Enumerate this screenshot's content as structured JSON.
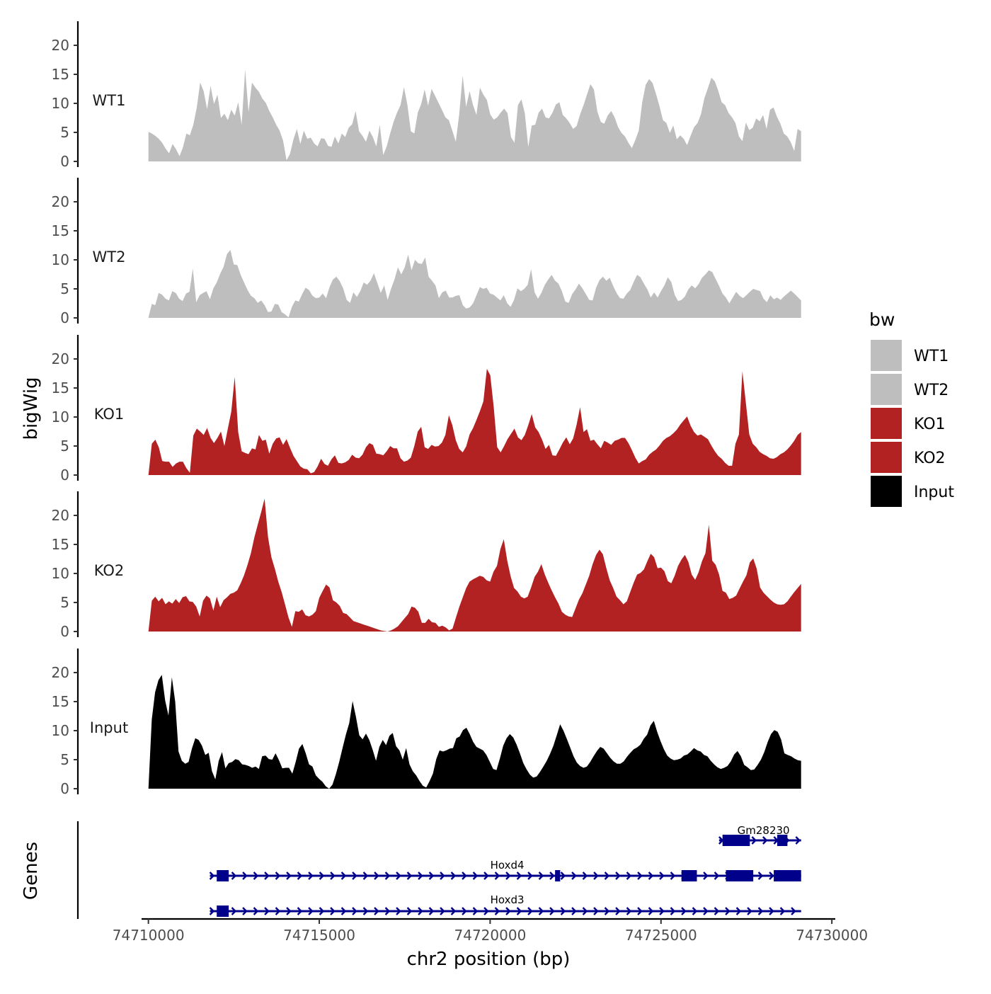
{
  "chart_data": {
    "type": "area",
    "title": "",
    "ylabel": "bigWig",
    "xlabel": "chr2 position (bp)",
    "genes_panel_label": "Genes",
    "xlim": [
      74709800,
      74730100
    ],
    "data_range": [
      74710000,
      74729100
    ],
    "ylim": [
      0,
      24
    ],
    "y_ticks": [
      0,
      5,
      10,
      15,
      20
    ],
    "y_tick_labels": [
      "0",
      "5",
      "10",
      "15",
      "20"
    ],
    "x_ticks": [
      74710000,
      74715000,
      74720000,
      74725000,
      74730000
    ],
    "x_tick_labels": [
      "74710000",
      "74715000",
      "74720000",
      "74725000",
      "74730000"
    ],
    "legend": {
      "title": "bw",
      "placement": "right",
      "entries": [
        {
          "label": "WT1",
          "color": "#bebebe"
        },
        {
          "label": "WT2",
          "color": "#bebebe"
        },
        {
          "label": "KO1",
          "color": "#b22222"
        },
        {
          "label": "KO2",
          "color": "#b22222"
        },
        {
          "label": "Input",
          "color": "#000000"
        }
      ]
    },
    "series": [
      {
        "name": "WT1",
        "color": "#bebebe",
        "values": [
          5.1,
          4.8,
          4.4,
          3.9,
          3.2,
          2.2,
          1.4,
          3.0,
          2.1,
          0.9,
          2.4,
          4.8,
          4.5,
          6.3,
          9.3,
          13.6,
          12.1,
          9.0,
          13.0,
          9.9,
          11.5,
          7.5,
          8.2,
          7.1,
          8.9,
          7.9,
          10.2,
          6.3,
          15.8,
          8.5,
          13.6,
          12.7,
          12.0,
          10.8,
          10.1,
          8.7,
          7.6,
          6.3,
          5.3,
          3.6,
          0.2,
          1.3,
          3.8,
          5.6,
          3.0,
          5.3,
          3.9,
          4.1,
          3.1,
          2.6,
          4.0,
          3.9,
          2.7,
          2.5,
          4.3,
          3.1,
          4.8,
          4.2,
          5.8,
          6.4,
          8.7,
          5.2,
          4.4,
          3.4,
          5.3,
          4.2,
          2.6,
          6.3,
          1.1,
          2.6,
          4.8,
          6.8,
          8.4,
          9.7,
          12.8,
          9.7,
          5.2,
          4.8,
          8.4,
          9.9,
          12.4,
          9.6,
          12.5,
          11.3,
          10.1,
          8.9,
          7.6,
          7.1,
          5.3,
          3.4,
          8.1,
          14.8,
          9.4,
          12.1,
          9.7,
          8.0,
          12.7,
          11.5,
          10.6,
          8.1,
          7.2,
          7.6,
          8.4,
          9.1,
          8.3,
          4.2,
          3.2,
          9.7,
          10.7,
          8.3,
          2.5,
          6.2,
          6.3,
          8.4,
          9.1,
          7.6,
          7.4,
          8.4,
          9.8,
          10.2,
          8.0,
          7.4,
          6.6,
          5.6,
          6.1,
          8.1,
          9.7,
          11.5,
          13.3,
          12.4,
          8.6,
          6.8,
          6.5,
          7.9,
          8.7,
          7.6,
          5.9,
          4.9,
          4.3,
          3.2,
          2.3,
          3.7,
          5.3,
          10.2,
          13.2,
          14.2,
          13.5,
          11.6,
          9.5,
          7.1,
          6.6,
          4.9,
          6.2,
          3.8,
          4.5,
          3.9,
          2.8,
          4.4,
          5.9,
          6.6,
          8.1,
          10.9,
          12.6,
          14.4,
          13.8,
          12.2,
          10.2,
          9.7,
          8.3,
          7.6,
          6.6,
          4.3,
          3.5,
          6.7,
          5.4,
          5.8,
          7.4,
          6.9,
          8.0,
          5.6,
          8.9,
          9.3,
          7.7,
          6.5,
          4.8,
          4.3,
          3.3,
          1.8,
          5.6,
          5.2
        ]
      },
      {
        "name": "WT2",
        "color": "#bebebe",
        "values": [
          0.1,
          2.4,
          2.2,
          4.3,
          4.0,
          3.3,
          3.0,
          4.6,
          4.3,
          3.3,
          2.9,
          4.2,
          4.5,
          8.5,
          2.7,
          3.9,
          4.3,
          4.6,
          3.2,
          5.1,
          6.1,
          7.6,
          8.8,
          11.0,
          11.7,
          9.2,
          9.1,
          7.4,
          6.1,
          4.8,
          3.8,
          3.4,
          2.6,
          3.0,
          2.2,
          1.0,
          1.1,
          2.4,
          2.3,
          1.0,
          0.6,
          0.1,
          1.9,
          3.0,
          2.8,
          4.1,
          5.2,
          4.8,
          3.8,
          3.4,
          3.5,
          4.2,
          3.4,
          5.3,
          6.6,
          7.1,
          6.3,
          5.1,
          3.1,
          2.6,
          4.4,
          3.6,
          4.6,
          6.1,
          5.7,
          6.4,
          7.7,
          6.0,
          4.3,
          5.6,
          3.1,
          5.0,
          6.6,
          8.7,
          7.5,
          8.7,
          10.9,
          8.2,
          10.0,
          9.4,
          9.3,
          10.4,
          7.1,
          6.4,
          5.6,
          3.4,
          4.4,
          4.7,
          3.5,
          3.5,
          3.8,
          3.9,
          2.2,
          1.6,
          1.8,
          2.5,
          3.9,
          5.3,
          5.0,
          5.2,
          4.2,
          4.0,
          3.5,
          3.0,
          3.9,
          2.5,
          1.9,
          3.1,
          5.1,
          4.6,
          5.0,
          5.7,
          8.4,
          4.4,
          3.3,
          4.3,
          5.7,
          6.6,
          7.4,
          6.4,
          5.9,
          4.6,
          2.8,
          2.6,
          4.1,
          4.9,
          5.9,
          5.1,
          4.1,
          3.1,
          3.0,
          5.2,
          6.5,
          7.1,
          6.4,
          6.9,
          5.5,
          4.3,
          3.4,
          3.3,
          4.2,
          4.8,
          6.2,
          7.4,
          7.0,
          5.9,
          4.9,
          3.5,
          4.4,
          3.5,
          4.6,
          5.6,
          7.0,
          6.2,
          4.0,
          2.9,
          3.1,
          3.7,
          4.9,
          5.6,
          5.1,
          5.8,
          6.9,
          7.5,
          8.2,
          7.9,
          6.7,
          5.5,
          4.2,
          3.5,
          2.5,
          3.5,
          4.5,
          3.8,
          3.4,
          3.9,
          4.5,
          5.0,
          4.8,
          4.6,
          3.3,
          2.7,
          3.9,
          3.2,
          3.5,
          3.1,
          3.7,
          4.2,
          4.7,
          4.2,
          3.6,
          3.0
        ]
      },
      {
        "name": "KO1",
        "color": "#b22222",
        "values": [
          0.0,
          5.4,
          6.1,
          4.8,
          2.4,
          2.3,
          2.3,
          1.4,
          2.0,
          2.3,
          2.3,
          1.2,
          0.4,
          6.8,
          8.0,
          7.5,
          6.9,
          8.1,
          6.4,
          5.5,
          6.4,
          7.5,
          5.0,
          8.0,
          10.9,
          16.9,
          7.4,
          4.1,
          3.8,
          3.6,
          4.6,
          4.4,
          6.9,
          5.9,
          6.1,
          3.7,
          5.4,
          6.3,
          6.5,
          5.2,
          6.2,
          4.7,
          3.3,
          2.4,
          1.5,
          1.1,
          1.0,
          0.3,
          0.5,
          1.5,
          2.8,
          1.9,
          1.6,
          2.7,
          3.4,
          2.1,
          2.0,
          2.2,
          2.6,
          3.5,
          3.0,
          2.9,
          3.5,
          4.8,
          5.5,
          5.2,
          3.7,
          3.6,
          3.4,
          4.1,
          5.0,
          4.6,
          4.6,
          2.9,
          2.3,
          2.5,
          3.0,
          5.0,
          7.5,
          8.3,
          4.8,
          4.5,
          5.2,
          4.9,
          5.0,
          5.6,
          6.9,
          10.3,
          8.6,
          6.0,
          4.5,
          3.9,
          4.9,
          7.0,
          8.1,
          9.5,
          11.0,
          12.7,
          18.3,
          17.2,
          11.7,
          4.8,
          3.9,
          5.0,
          6.2,
          7.1,
          8.0,
          6.5,
          6.0,
          6.9,
          8.6,
          10.5,
          8.2,
          7.4,
          6.1,
          4.5,
          5.2,
          3.4,
          3.3,
          4.4,
          5.6,
          6.5,
          5.3,
          6.3,
          8.7,
          11.7,
          7.4,
          7.9,
          5.9,
          6.1,
          5.3,
          4.6,
          5.9,
          5.6,
          5.2,
          5.9,
          6.1,
          6.4,
          6.4,
          5.5,
          4.3,
          3.0,
          2.0,
          2.4,
          2.7,
          3.5,
          4.0,
          4.4,
          5.1,
          5.9,
          6.4,
          6.7,
          7.2,
          7.8,
          8.7,
          9.4,
          10.1,
          8.5,
          7.4,
          6.8,
          7.0,
          6.6,
          6.2,
          5.1,
          4.1,
          3.3,
          2.8,
          2.1,
          1.6,
          1.6,
          5.4,
          7.0,
          17.9,
          12.4,
          7.0,
          5.4,
          4.8,
          4.0,
          3.6,
          3.3,
          2.9,
          2.8,
          3.1,
          3.6,
          3.9,
          4.4,
          5.1,
          5.9,
          6.9,
          7.4
        ]
      },
      {
        "name": "KO2",
        "color": "#b22222",
        "values": [
          0.0,
          5.3,
          6.0,
          5.2,
          5.8,
          4.7,
          5.2,
          4.8,
          5.6,
          4.9,
          5.9,
          6.1,
          5.2,
          5.1,
          4.3,
          2.6,
          5.3,
          6.2,
          5.7,
          3.6,
          6.0,
          4.2,
          5.4,
          5.9,
          6.5,
          6.7,
          7.1,
          8.3,
          9.7,
          11.5,
          13.5,
          16.2,
          18.4,
          20.6,
          22.9,
          16.3,
          12.8,
          10.8,
          8.6,
          6.8,
          4.6,
          2.4,
          0.8,
          3.5,
          3.4,
          3.8,
          2.8,
          2.6,
          2.9,
          3.5,
          5.8,
          7.0,
          8.1,
          7.6,
          5.4,
          5.0,
          4.4,
          3.2,
          3.0,
          2.4,
          1.8,
          1.6,
          1.4,
          1.2,
          1.0,
          0.8,
          0.6,
          0.4,
          0.2,
          0.1,
          0.0,
          0.2,
          0.5,
          0.9,
          1.6,
          2.3,
          3.0,
          4.3,
          4.1,
          3.4,
          1.5,
          1.5,
          2.2,
          1.6,
          1.5,
          0.8,
          1.0,
          0.7,
          0.2,
          0.5,
          2.4,
          4.3,
          5.9,
          7.5,
          8.6,
          9.0,
          9.3,
          9.6,
          9.4,
          8.8,
          8.6,
          10.3,
          11.3,
          14.2,
          15.9,
          12.2,
          9.5,
          7.5,
          6.9,
          6.0,
          5.7,
          6.0,
          7.6,
          9.4,
          10.3,
          11.6,
          9.8,
          8.4,
          7.1,
          5.9,
          4.8,
          3.4,
          2.9,
          2.6,
          2.5,
          4.0,
          5.5,
          6.6,
          8.1,
          9.6,
          11.6,
          13.2,
          14.1,
          13.3,
          10.9,
          8.8,
          7.5,
          6.0,
          5.4,
          4.7,
          5.2,
          6.8,
          8.4,
          9.8,
          10.1,
          10.7,
          12.1,
          13.4,
          12.8,
          10.9,
          11.0,
          10.4,
          8.7,
          8.3,
          9.6,
          11.3,
          12.4,
          13.2,
          12.0,
          9.8,
          8.9,
          10.2,
          12.1,
          13.5,
          18.4,
          12.2,
          11.5,
          9.8,
          7.0,
          6.7,
          5.6,
          5.8,
          6.2,
          7.4,
          8.6,
          9.7,
          11.9,
          12.6,
          10.8,
          7.6,
          6.7,
          6.1,
          5.5,
          5.0,
          4.7,
          4.6,
          4.7,
          5.2,
          6.0,
          6.8,
          7.5,
          8.2
        ]
      },
      {
        "name": "Input",
        "color": "#000000",
        "values": [
          0.0,
          11.9,
          16.6,
          18.7,
          19.6,
          15.2,
          12.6,
          19.2,
          15.0,
          6.4,
          4.8,
          4.3,
          4.6,
          6.9,
          8.7,
          8.4,
          7.4,
          5.8,
          6.2,
          3.0,
          1.6,
          4.8,
          6.3,
          3.5,
          4.4,
          4.6,
          5.1,
          4.9,
          4.2,
          4.1,
          3.9,
          3.6,
          3.8,
          3.4,
          5.6,
          5.7,
          5.1,
          5.0,
          6.1,
          4.9,
          3.5,
          3.6,
          3.6,
          2.6,
          4.6,
          6.9,
          7.7,
          6.1,
          4.2,
          3.8,
          2.3,
          1.7,
          1.2,
          0.4,
          0.0,
          0.7,
          2.5,
          4.6,
          7.0,
          9.3,
          11.3,
          15.1,
          12.4,
          9.2,
          8.5,
          9.5,
          8.4,
          6.7,
          4.8,
          7.2,
          8.4,
          7.5,
          9.1,
          9.6,
          7.3,
          6.6,
          5.0,
          7.0,
          4.2,
          3.0,
          2.3,
          1.3,
          0.5,
          0.2,
          1.3,
          2.6,
          5.1,
          6.6,
          6.4,
          6.6,
          6.9,
          7.0,
          8.7,
          9.0,
          10.1,
          10.5,
          9.4,
          8.1,
          7.2,
          6.9,
          6.6,
          5.8,
          4.6,
          3.4,
          3.2,
          5.2,
          7.4,
          8.7,
          9.4,
          8.8,
          7.6,
          6.1,
          4.4,
          3.3,
          2.4,
          1.9,
          2.1,
          2.9,
          3.8,
          4.8,
          6.0,
          7.4,
          9.2,
          11.1,
          10.0,
          8.6,
          7.1,
          5.6,
          4.5,
          3.9,
          3.6,
          3.8,
          4.6,
          5.6,
          6.5,
          7.2,
          6.9,
          6.1,
          5.3,
          4.7,
          4.3,
          4.3,
          4.7,
          5.5,
          6.2,
          6.8,
          7.1,
          7.6,
          8.6,
          9.3,
          10.9,
          11.7,
          9.8,
          8.2,
          6.8,
          5.7,
          5.2,
          4.9,
          5.0,
          5.2,
          5.7,
          5.9,
          6.4,
          7.0,
          6.6,
          6.4,
          5.8,
          5.6,
          4.8,
          4.2,
          3.7,
          3.4,
          3.6,
          3.9,
          4.7,
          5.9,
          6.5,
          5.6,
          4.1,
          3.7,
          3.2,
          3.3,
          4.1,
          5.0,
          6.3,
          8.0,
          9.4,
          10.1,
          9.8,
          8.5,
          6.1,
          5.8,
          5.6,
          5.2,
          4.9,
          4.8
        ]
      }
    ],
    "genes": [
      {
        "name": "Gm28230",
        "start": 74726700,
        "end": 74729100,
        "strand": "+",
        "exons": [
          [
            74726800,
            74727600
          ],
          [
            74728400,
            74728700
          ]
        ]
      },
      {
        "name": "Hoxd4",
        "start": 74711800,
        "end": 74729100,
        "strand": "+",
        "exons": [
          [
            74712000,
            74712350
          ],
          [
            74721900,
            74722050
          ],
          [
            74725600,
            74726050
          ],
          [
            74726900,
            74727700
          ],
          [
            74728300,
            74729100
          ]
        ]
      },
      {
        "name": "Hoxd3",
        "start": 74711800,
        "end": 74729100,
        "strand": "+",
        "exons": [
          [
            74712000,
            74712350
          ]
        ]
      }
    ]
  }
}
